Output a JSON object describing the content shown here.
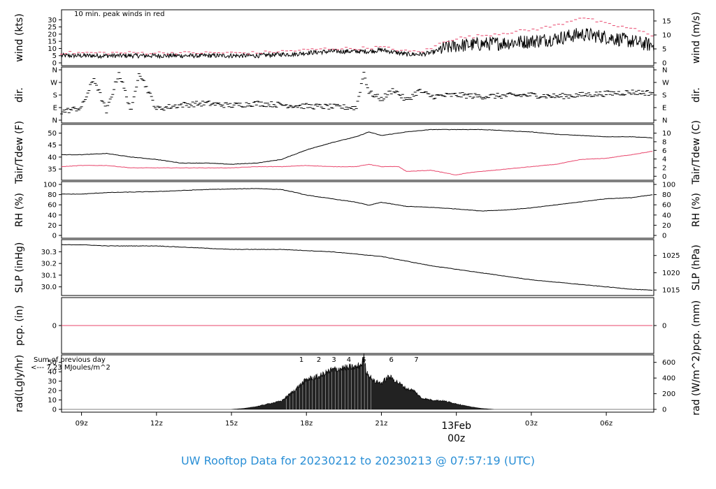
{
  "title": "UW Rooftop Data for 20230212  to  20230213 @ 07:57:19  (UTC)",
  "colors": {
    "black": "#000000",
    "red": "#e8456b",
    "purple": "#b020d0",
    "title_blue": "#2a8fd6"
  },
  "chart_data": [
    {
      "type": "line",
      "name": "wind",
      "ylabel_left": "wind (kts)",
      "ylabel_right": "wind (m/s)",
      "ylim": [
        0,
        35
      ],
      "yticks_left": [
        0,
        5,
        10,
        15,
        20,
        25,
        30
      ],
      "yticks_right": [
        0,
        5,
        10,
        15
      ],
      "annotation": "10 min. peak winds in red",
      "series": [
        {
          "name": "speed",
          "color": "#000000",
          "x": [
            8.2,
            9,
            10,
            11,
            12,
            13,
            14,
            15,
            16,
            17,
            17.5,
            18,
            19,
            20,
            20.5,
            21,
            22,
            22.6,
            23,
            23.5,
            24,
            25,
            26,
            27,
            28,
            29,
            30,
            31,
            31.9
          ],
          "y": [
            5,
            5,
            5,
            5,
            5,
            5,
            5,
            5,
            5,
            6,
            6,
            7,
            8,
            8,
            8,
            9,
            6,
            6,
            7,
            10,
            12,
            13,
            14,
            15,
            17,
            20,
            18,
            15,
            12
          ]
        },
        {
          "name": "10 min. peak winds",
          "color": "#e8456b",
          "x": [
            8.2,
            9,
            10,
            11,
            12,
            13,
            14,
            15,
            16,
            17,
            18,
            19,
            20,
            21,
            22,
            22.6,
            23,
            23.5,
            24,
            25,
            26,
            27,
            28,
            29,
            30,
            31,
            31.9
          ],
          "y": [
            7,
            7,
            7,
            7,
            7,
            7,
            7,
            7,
            7,
            8,
            9,
            10,
            10,
            11,
            8,
            8,
            10,
            15,
            17,
            19,
            21,
            23,
            26,
            32,
            27,
            24,
            19
          ]
        }
      ]
    },
    {
      "type": "scatter",
      "name": "dir",
      "ylabel_left": "dir.",
      "ylabel_right": "dir.",
      "ycats": [
        "N",
        "E",
        "S",
        "W",
        "N"
      ],
      "ylim": [
        0,
        360
      ],
      "series": [
        {
          "name": "direction",
          "color": "#000000",
          "x": [
            8.2,
            9,
            9.5,
            10,
            10.5,
            11,
            11.3,
            12,
            13,
            14,
            15,
            16,
            17,
            18,
            19,
            20,
            20.3,
            20.5,
            21,
            21.5,
            22,
            22.5,
            23,
            24,
            25,
            26,
            27,
            28,
            29,
            30,
            31,
            31.9
          ],
          "y": [
            60,
            90,
            300,
            60,
            340,
            60,
            350,
            80,
            110,
            120,
            105,
            120,
            110,
            100,
            95,
            90,
            340,
            200,
            150,
            220,
            140,
            210,
            170,
            180,
            170,
            175,
            180,
            170,
            180,
            190,
            200,
            195
          ]
        }
      ]
    },
    {
      "type": "line",
      "name": "temp",
      "ylabel_left": "Tair/Tdew (F)",
      "ylabel_right": "Tair/Tdew (C)",
      "ylim": [
        31.5,
        52.5
      ],
      "yticks_left": [
        35,
        40,
        45,
        50
      ],
      "yticks_right": [
        0,
        2,
        4,
        6,
        8,
        10
      ],
      "series": [
        {
          "name": "Tair",
          "color": "#000000",
          "x": [
            8.2,
            9,
            10,
            11,
            12,
            13,
            14,
            15,
            16,
            17,
            17.5,
            18,
            19,
            20,
            20.5,
            21,
            22,
            23,
            24,
            25,
            26,
            27,
            28,
            29,
            30,
            31,
            31.9
          ],
          "y": [
            41,
            41,
            41.5,
            40,
            39,
            37.5,
            37.5,
            37,
            37.5,
            39,
            41,
            43,
            46,
            48.5,
            50.5,
            49,
            50.5,
            51.5,
            51.5,
            51.5,
            51,
            50.5,
            49.5,
            49,
            48.5,
            48.5,
            48
          ]
        },
        {
          "name": "Tdew",
          "color": "#e8456b",
          "x": [
            8.2,
            9,
            10,
            11,
            12,
            13,
            14,
            15,
            16,
            17,
            18,
            19,
            20,
            20.5,
            21,
            21.7,
            22,
            23,
            23.5,
            24,
            24.5,
            25,
            26,
            27,
            28,
            29,
            30,
            31,
            31.9
          ],
          "y": [
            36,
            36.5,
            36.5,
            35.5,
            35.5,
            35.5,
            35.5,
            35.5,
            36,
            36,
            36.5,
            36,
            36,
            37,
            36,
            36,
            34,
            34.5,
            33.5,
            32.5,
            33.5,
            34,
            35,
            36,
            37,
            39,
            39.5,
            41,
            42.5
          ]
        }
      ]
    },
    {
      "type": "line",
      "name": "rh",
      "ylabel_left": "RH (%)",
      "ylabel_right": "RH (%)",
      "ylim": [
        0,
        100
      ],
      "yticks_left": [
        0,
        20,
        40,
        60,
        80,
        100
      ],
      "yticks_right": [
        0,
        20,
        40,
        60,
        80,
        100
      ],
      "series": [
        {
          "name": "RH",
          "color": "#000000",
          "x": [
            8.2,
            9,
            10,
            11,
            12,
            13,
            14,
            15,
            16,
            17,
            17.5,
            18,
            19,
            20,
            20.5,
            21,
            22,
            23,
            24,
            25,
            26,
            27,
            28,
            29,
            30,
            31,
            31.9
          ],
          "y": [
            81,
            81,
            84,
            85,
            86,
            88,
            90,
            91,
            92,
            90,
            85,
            79,
            72,
            65,
            59,
            65,
            57,
            55,
            52,
            48,
            50,
            54,
            60,
            66,
            72,
            74,
            80
          ]
        }
      ]
    },
    {
      "type": "line",
      "name": "slp",
      "ylabel_left": "SLP (inHg)",
      "ylabel_right": "SLP (hPa)",
      "ylim": [
        29.95,
        30.38
      ],
      "yticks_left": [
        30.0,
        30.1,
        30.2,
        30.3
      ],
      "yticks_left_labels": [
        "30.0",
        "30.1",
        "30.2",
        "30.3"
      ],
      "yticks_right": [
        1015,
        1020,
        1025
      ],
      "series": [
        {
          "name": "SLP",
          "color": "#000000",
          "x": [
            8.2,
            9,
            10,
            11,
            12,
            13,
            14,
            15,
            16,
            17,
            18,
            19,
            20,
            21,
            22,
            23,
            24,
            25,
            26,
            27,
            28,
            29,
            30,
            31,
            31.9
          ],
          "y": [
            30.36,
            30.36,
            30.35,
            30.35,
            30.35,
            30.34,
            30.33,
            30.32,
            30.32,
            30.32,
            30.31,
            30.3,
            30.28,
            30.26,
            30.22,
            30.18,
            30.15,
            30.12,
            30.09,
            30.06,
            30.04,
            30.02,
            30.0,
            29.98,
            29.97
          ]
        }
      ]
    },
    {
      "type": "line",
      "name": "pcp",
      "ylabel_left": "pcp. (in)",
      "ylabel_right": "pcp. (mm)",
      "ylim": [
        -1,
        1
      ],
      "yticks_left": [
        0
      ],
      "yticks_right": [
        0
      ],
      "series": [
        {
          "name": "precip",
          "color": "#e8456b",
          "x": [
            8.2,
            31.9
          ],
          "y": [
            0,
            0
          ]
        }
      ]
    },
    {
      "type": "area",
      "name": "rad",
      "ylabel_left": "rad(Lgly/hr)",
      "ylabel_right": "rad (W/m^2)",
      "ylim": [
        0,
        55
      ],
      "yticks_left": [
        0,
        10,
        20,
        30,
        40,
        50
      ],
      "yticks_right": [
        0,
        200,
        400,
        600
      ],
      "annotation_lines": [
        "Sum of previous day",
        "<--- 7.23 MJoules/m^2"
      ],
      "hour_markers": [
        {
          "label": "1",
          "x": 17.8
        },
        {
          "label": "2",
          "x": 18.5
        },
        {
          "label": "3",
          "x": 19.1
        },
        {
          "label": "4",
          "x": 19.7
        },
        {
          "label": "5",
          "x": 20.3
        },
        {
          "label": "6",
          "x": 21.4
        },
        {
          "label": "7",
          "x": 22.4
        }
      ],
      "series": [
        {
          "name": "radiation",
          "color": "#000000",
          "x": [
            8.2,
            15,
            15.5,
            16,
            16.5,
            17,
            17.5,
            18,
            18.5,
            19,
            19.5,
            20,
            20.2,
            20.3,
            20.4,
            20.7,
            21,
            21.3,
            21.6,
            22,
            22.3,
            22.6,
            23,
            23.5,
            24,
            24.5,
            25,
            25.5,
            31.9
          ],
          "y": [
            0,
            0,
            1,
            3,
            6,
            9,
            20,
            32,
            35,
            42,
            44,
            45,
            48,
            55,
            40,
            30,
            28,
            35,
            30,
            22,
            20,
            12,
            10,
            9,
            6,
            3,
            1,
            0,
            0
          ]
        }
      ]
    }
  ],
  "x_axis": {
    "xlim": [
      8.2,
      31.9
    ],
    "ticks": [
      {
        "value": 9,
        "label": "09z"
      },
      {
        "value": 12,
        "label": "12z"
      },
      {
        "value": 15,
        "label": "15z"
      },
      {
        "value": 18,
        "label": "18z"
      },
      {
        "value": 21,
        "label": "21z"
      },
      {
        "value": 27,
        "label": "03z"
      },
      {
        "value": 30,
        "label": "06z"
      }
    ],
    "day_marker": {
      "value": 24,
      "date": "13Feb",
      "hour": "00z"
    }
  }
}
